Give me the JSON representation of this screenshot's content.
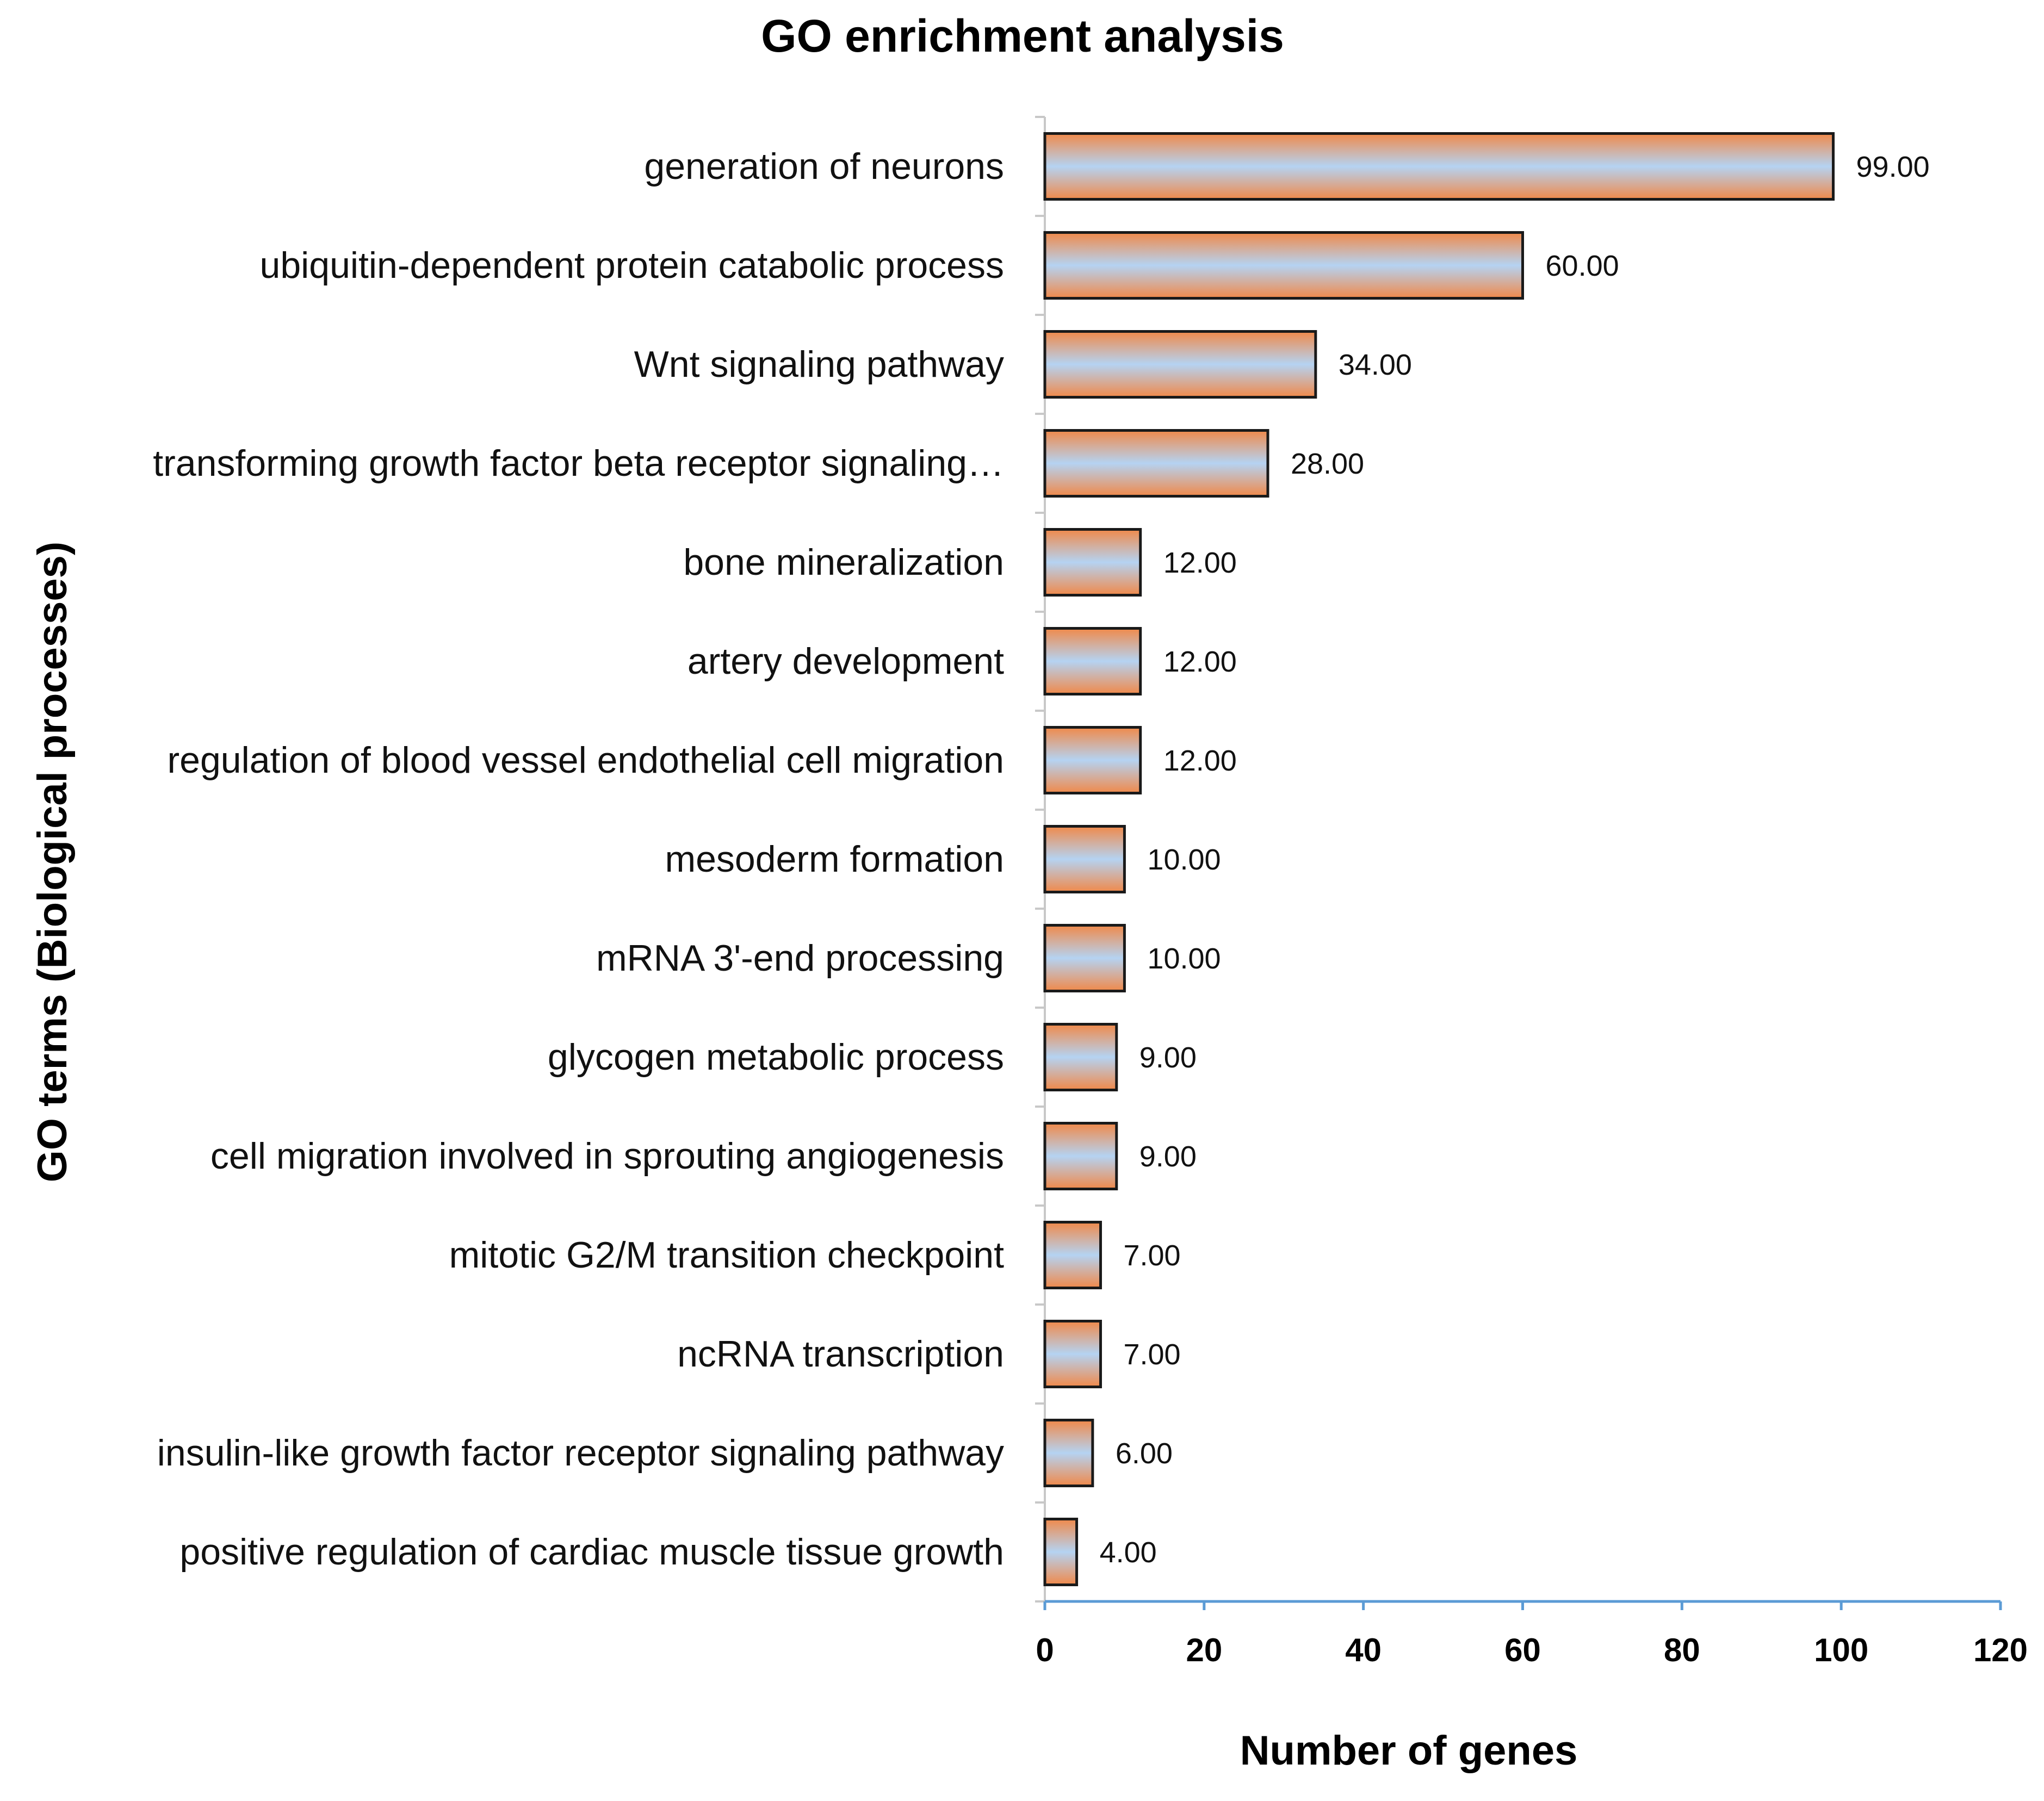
{
  "chart_data": {
    "type": "bar",
    "orientation": "horizontal",
    "title": "GO enrichment analysis",
    "xlabel": "Number of genes",
    "ylabel": "GO terms (Biological processes)",
    "xlim": [
      0,
      120
    ],
    "x_ticks": [
      0,
      20,
      40,
      60,
      80,
      100,
      120
    ],
    "grid": false,
    "legend": "none",
    "categories": [
      "generation of neurons",
      "ubiquitin-dependent protein catabolic process",
      "Wnt signaling pathway",
      "transforming growth factor beta receptor signaling…",
      "bone mineralization",
      "artery development",
      "regulation of blood vessel endothelial cell migration",
      "mesoderm formation",
      "mRNA 3'-end processing",
      "glycogen metabolic process",
      "cell migration involved in sprouting angiogenesis",
      "mitotic G2/M transition checkpoint",
      "ncRNA transcription",
      "insulin-like growth factor receptor signaling pathway",
      "positive regulation of cardiac muscle tissue growth"
    ],
    "values": [
      99,
      60,
      34,
      28,
      12,
      12,
      12,
      10,
      10,
      9,
      9,
      7,
      7,
      6,
      4
    ],
    "data_labels": [
      "99.00",
      "60.00",
      "34.00",
      "28.00",
      "12.00",
      "12.00",
      "12.00",
      "10.00",
      "10.00",
      "9.00",
      "9.00",
      "7.00",
      "7.00",
      "6.00",
      "4.00"
    ],
    "colors": {
      "bar_gradient_edge": "#f0894a",
      "bar_gradient_center": "#b5d3f2",
      "bar_outline": "#1a1a1a",
      "axis_line": "#5b9bd5",
      "category_axis": "#c8c8c8"
    }
  }
}
